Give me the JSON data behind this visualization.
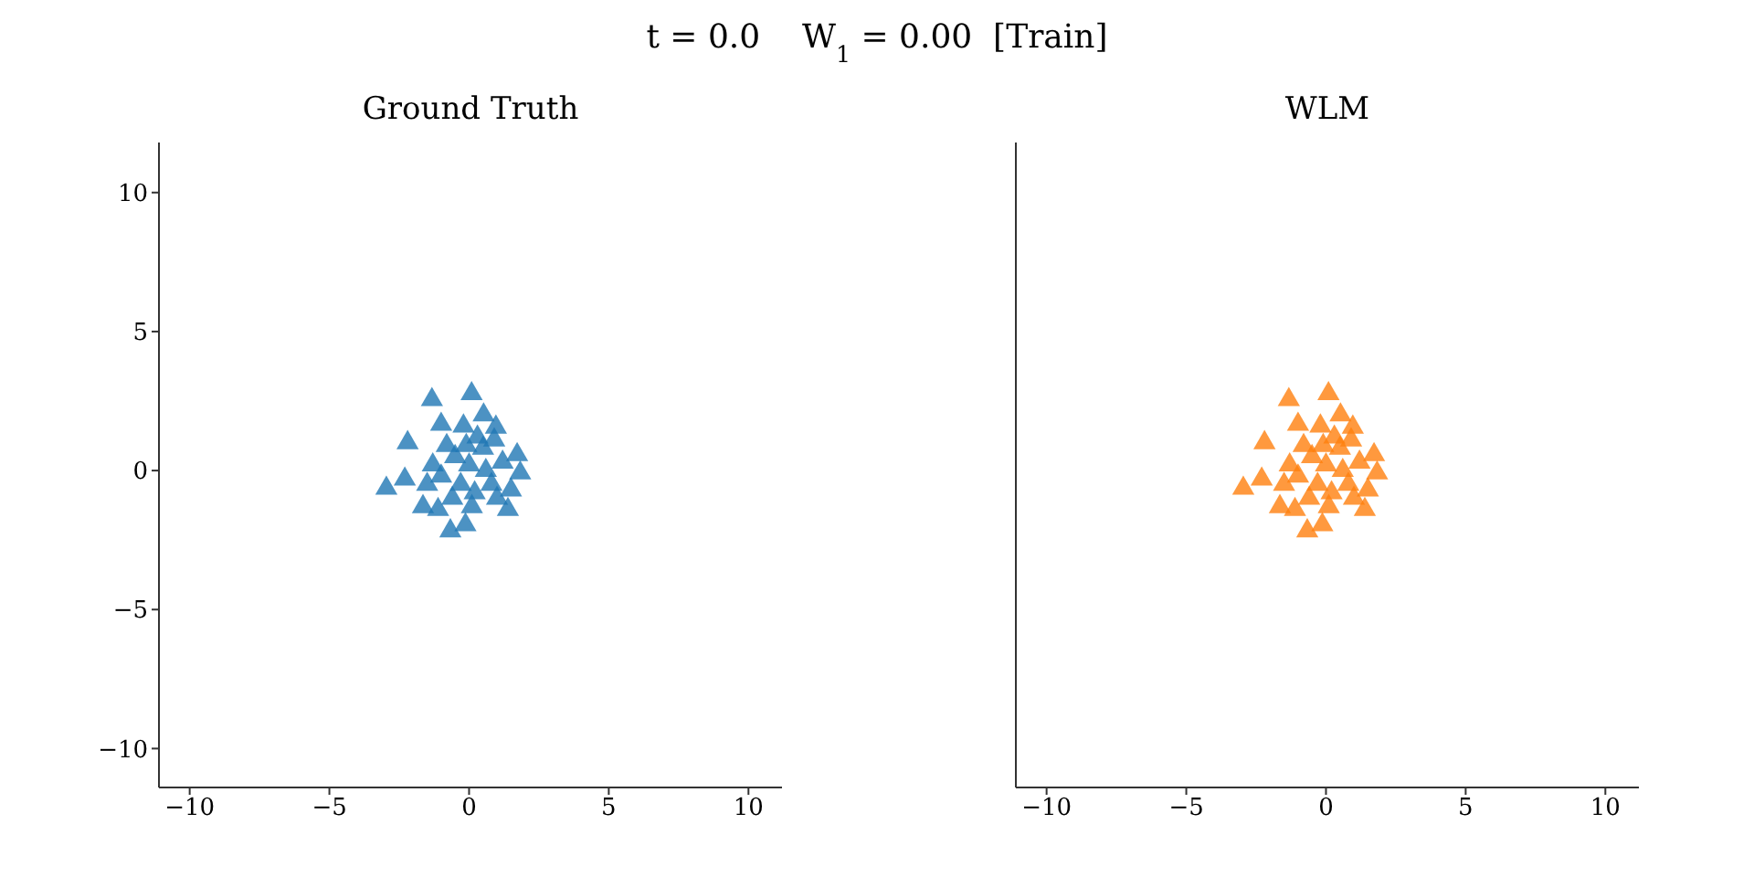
{
  "chart_data": [
    {
      "type": "scatter",
      "title": "Ground Truth",
      "annotations": [
        "t = 0.0    W$_{1}$ = 0.00  [Train]"
      ],
      "x": [
        -1.33,
        0.09,
        -2.2,
        0.52,
        0.96,
        -1.0,
        -2.96,
        -2.3,
        1.72,
        1.83,
        1.39,
        -0.67,
        -0.13,
        -1.65,
        -1.11,
        -0.5,
        0.0,
        0.5,
        -1.0,
        0.8,
        0.2,
        -0.3,
        1.2,
        -0.8,
        0.3,
        -1.3,
        1.0,
        -0.2,
        0.6,
        -0.6,
        1.5,
        -1.5,
        0.1,
        -0.1,
        0.9
      ],
      "series": [
        {
          "color": "#1f77b4",
          "values": [
            2.55,
            2.76,
            1.0,
            2.0,
            1.56,
            1.66,
            -0.64,
            -0.31,
            0.57,
            -0.09,
            -1.4,
            -2.17,
            -1.95,
            -1.3,
            -1.4,
            0.5,
            0.2,
            0.8,
            -0.2,
            -0.5,
            -0.8,
            -0.5,
            0.3,
            0.9,
            1.2,
            0.2,
            -1.0,
            1.6,
            0.0,
            -1.0,
            -0.7,
            -0.5,
            -1.3,
            0.9,
            1.1
          ]
        }
      ],
      "marker": "triangle",
      "xlim": [
        -11.1,
        11.2
      ],
      "ylim": [
        -11.4,
        11.8
      ],
      "xticks": [
        -10,
        -5,
        0,
        5,
        10
      ],
      "yticks": [
        -10,
        -5,
        0,
        5,
        10
      ],
      "grid": false,
      "legend": false
    },
    {
      "type": "scatter",
      "title": "WLM",
      "x": [
        -1.33,
        0.09,
        -2.2,
        0.52,
        0.96,
        -1.0,
        -2.96,
        -2.3,
        1.72,
        1.83,
        1.39,
        -0.67,
        -0.13,
        -1.65,
        -1.11,
        -0.5,
        0.0,
        0.5,
        -1.0,
        0.8,
        0.2,
        -0.3,
        1.2,
        -0.8,
        0.3,
        -1.3,
        1.0,
        -0.2,
        0.6,
        -0.6,
        1.5,
        -1.5,
        0.1,
        -0.1,
        0.9
      ],
      "series": [
        {
          "color": "#ff7f0e",
          "values": [
            2.55,
            2.76,
            1.0,
            2.0,
            1.56,
            1.66,
            -0.64,
            -0.31,
            0.57,
            -0.09,
            -1.4,
            -2.17,
            -1.95,
            -1.3,
            -1.4,
            0.5,
            0.2,
            0.8,
            -0.2,
            -0.5,
            -0.8,
            -0.5,
            0.3,
            0.9,
            1.2,
            0.2,
            -1.0,
            1.6,
            0.0,
            -1.0,
            -0.7,
            -0.5,
            -1.3,
            0.9,
            1.1
          ]
        }
      ],
      "marker": "triangle",
      "xlim": [
        -11.1,
        11.2
      ],
      "ylim": [
        -11.4,
        11.8
      ],
      "xticks": [
        -10,
        -5,
        0,
        5,
        10
      ],
      "yticks": [
        -10,
        -5,
        0,
        5,
        10
      ],
      "tick_labels": "x",
      "grid": false,
      "legend": false
    }
  ]
}
